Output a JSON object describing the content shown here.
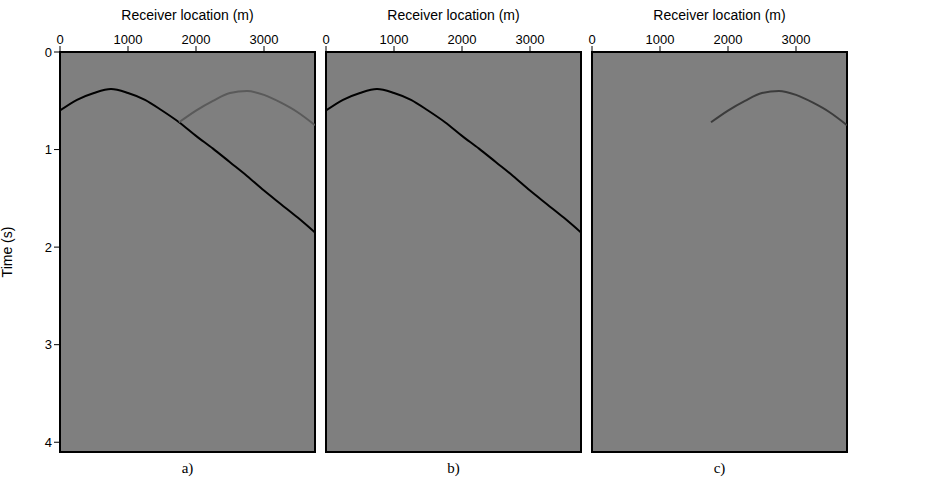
{
  "chart_data": [
    {
      "type": "line",
      "title": "a)",
      "x_label": "Receiver location (m)",
      "y_label": "Time (s)",
      "x": [
        0,
        250,
        500,
        750,
        1000,
        1250,
        1500,
        1750,
        2000,
        2250,
        2500,
        2750,
        3000,
        3250,
        3500,
        3750
      ],
      "series": [
        {
          "color": "#000000",
          "line_style": "solid",
          "values": [
            0.6,
            0.49,
            0.42,
            0.38,
            0.42,
            0.49,
            0.6,
            0.72,
            0.86,
            0.99,
            1.13,
            1.27,
            1.42,
            1.56,
            1.7,
            1.85
          ]
        },
        {
          "color": "#5a5a5a",
          "line_style": "solid",
          "values": [
            null,
            null,
            null,
            null,
            null,
            null,
            null,
            0.72,
            0.6,
            0.5,
            0.42,
            0.4,
            0.44,
            0.52,
            0.62,
            0.75
          ]
        }
      ],
      "xlim": [
        0,
        3750
      ],
      "ylim": [
        0,
        4.1
      ],
      "xticks": [
        0,
        1000,
        2000,
        3000
      ],
      "yticks": [
        0,
        1,
        2,
        3,
        4
      ]
    },
    {
      "type": "line",
      "title": "b)",
      "x_label": "Receiver location (m)",
      "tick_labels": "x",
      "x": [
        0,
        250,
        500,
        750,
        1000,
        1250,
        1500,
        1750,
        2000,
        2250,
        2500,
        2750,
        3000,
        3250,
        3500,
        3750
      ],
      "series": [
        {
          "color": "#000000",
          "line_style": "solid",
          "values": [
            0.6,
            0.49,
            0.42,
            0.38,
            0.42,
            0.49,
            0.6,
            0.72,
            0.86,
            0.99,
            1.13,
            1.27,
            1.42,
            1.56,
            1.7,
            1.85
          ]
        }
      ],
      "xlim": [
        0,
        3750
      ],
      "ylim": [
        0,
        4.1
      ],
      "xticks": [
        0,
        1000,
        2000,
        3000
      ],
      "yticks": [
        0,
        1,
        2,
        3,
        4
      ]
    },
    {
      "type": "line",
      "title": "c)",
      "x_label": "Receiver location (m)",
      "tick_labels": "x",
      "x": [
        0,
        250,
        500,
        750,
        1000,
        1250,
        1500,
        1750,
        2000,
        2250,
        2500,
        2750,
        3000,
        3250,
        3500,
        3750
      ],
      "series": [
        {
          "color": "#3c3c3c",
          "line_style": "solid",
          "values": [
            null,
            null,
            null,
            null,
            null,
            null,
            null,
            0.72,
            0.6,
            0.5,
            0.42,
            0.4,
            0.44,
            0.52,
            0.62,
            0.75
          ]
        }
      ],
      "xlim": [
        0,
        3750
      ],
      "ylim": [
        0,
        4.1
      ],
      "xticks": [
        0,
        1000,
        2000,
        3000
      ],
      "yticks": [
        0,
        1,
        2,
        3,
        4
      ]
    }
  ]
}
